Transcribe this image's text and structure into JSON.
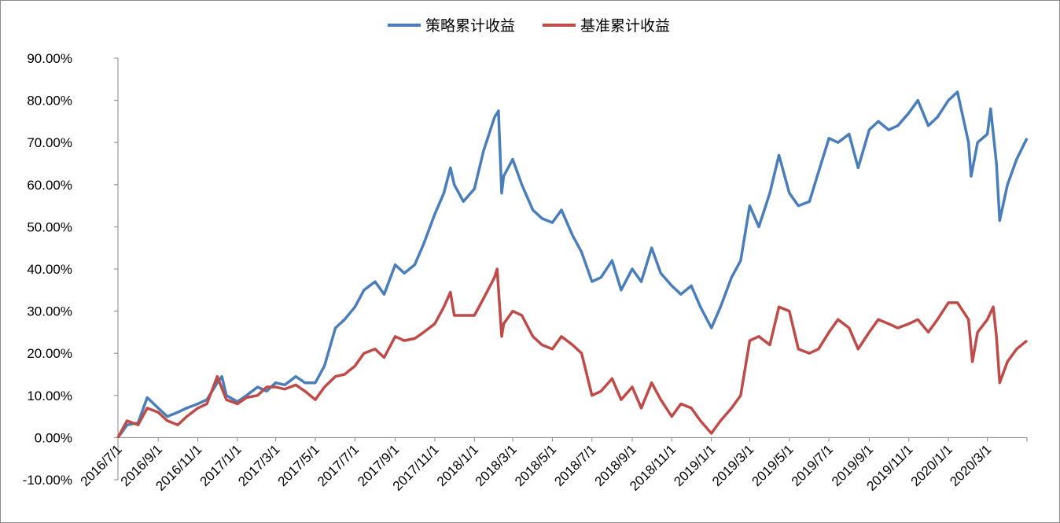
{
  "chart_data": {
    "type": "line",
    "title": "",
    "xlabel": "",
    "ylabel": "",
    "ylim": [
      -10,
      90
    ],
    "yticks": [
      -10,
      0,
      10,
      20,
      30,
      40,
      50,
      60,
      70,
      80,
      90
    ],
    "ytick_labels": [
      "-10.00%",
      "0.00%",
      "10.00%",
      "20.00%",
      "30.00%",
      "40.00%",
      "50.00%",
      "60.00%",
      "70.00%",
      "80.00%",
      "90.00%"
    ],
    "xlim": [
      "2016-07-01",
      "2020-05-01"
    ],
    "xtick_labels": [
      "2016/7/1",
      "2016/9/1",
      "2016/11/1",
      "2017/1/1",
      "2017/3/1",
      "2017/5/1",
      "2017/7/1",
      "2017/9/1",
      "2017/11/1",
      "2018/1/1",
      "2018/3/1",
      "2018/5/1",
      "2018/7/1",
      "2018/9/1",
      "2018/11/1",
      "2019/1/1",
      "2019/3/1",
      "2019/5/1",
      "2019/7/1",
      "2019/9/1",
      "2019/11/1",
      "2020/1/1",
      "2020/3/1"
    ],
    "grid": false,
    "legend_position": "top-center",
    "series": [
      {
        "name": "策略累计收益",
        "color": "#4a7ebb",
        "points": [
          [
            "2016-07-01",
            0
          ],
          [
            "2016-07-15",
            3
          ],
          [
            "2016-08-01",
            3.5
          ],
          [
            "2016-08-15",
            9.5
          ],
          [
            "2016-09-01",
            7
          ],
          [
            "2016-09-15",
            5
          ],
          [
            "2016-10-01",
            6
          ],
          [
            "2016-10-15",
            7
          ],
          [
            "2016-11-01",
            8
          ],
          [
            "2016-11-15",
            9
          ],
          [
            "2016-12-01",
            13
          ],
          [
            "2016-12-08",
            14.5
          ],
          [
            "2016-12-15",
            10
          ],
          [
            "2017-01-01",
            8.5
          ],
          [
            "2017-01-15",
            10
          ],
          [
            "2017-02-01",
            12
          ],
          [
            "2017-02-15",
            11
          ],
          [
            "2017-03-01",
            13
          ],
          [
            "2017-03-15",
            12.5
          ],
          [
            "2017-04-01",
            14.5
          ],
          [
            "2017-04-15",
            13
          ],
          [
            "2017-05-01",
            13
          ],
          [
            "2017-05-15",
            17
          ],
          [
            "2017-06-01",
            26
          ],
          [
            "2017-06-15",
            28
          ],
          [
            "2017-07-01",
            31
          ],
          [
            "2017-07-15",
            35
          ],
          [
            "2017-08-01",
            37
          ],
          [
            "2017-08-15",
            34
          ],
          [
            "2017-09-01",
            41
          ],
          [
            "2017-09-15",
            39
          ],
          [
            "2017-10-01",
            41
          ],
          [
            "2017-10-15",
            46
          ],
          [
            "2017-11-01",
            53
          ],
          [
            "2017-11-15",
            58
          ],
          [
            "2017-11-25",
            64
          ],
          [
            "2017-12-01",
            60
          ],
          [
            "2017-12-15",
            56
          ],
          [
            "2018-01-01",
            59
          ],
          [
            "2018-01-15",
            68
          ],
          [
            "2018-02-01",
            76
          ],
          [
            "2018-02-07",
            77.5
          ],
          [
            "2018-02-12",
            58
          ],
          [
            "2018-02-15",
            62
          ],
          [
            "2018-03-01",
            66
          ],
          [
            "2018-03-15",
            60
          ],
          [
            "2018-04-01",
            54
          ],
          [
            "2018-04-15",
            52
          ],
          [
            "2018-05-01",
            51
          ],
          [
            "2018-05-15",
            54
          ],
          [
            "2018-06-01",
            48
          ],
          [
            "2018-06-15",
            44
          ],
          [
            "2018-07-01",
            37
          ],
          [
            "2018-07-15",
            38
          ],
          [
            "2018-08-01",
            42
          ],
          [
            "2018-08-15",
            35
          ],
          [
            "2018-09-01",
            40
          ],
          [
            "2018-09-15",
            37
          ],
          [
            "2018-10-01",
            45
          ],
          [
            "2018-10-15",
            39
          ],
          [
            "2018-11-01",
            36
          ],
          [
            "2018-11-15",
            34
          ],
          [
            "2018-12-01",
            36
          ],
          [
            "2018-12-15",
            31
          ],
          [
            "2019-01-01",
            26
          ],
          [
            "2019-01-15",
            31
          ],
          [
            "2019-02-01",
            38
          ],
          [
            "2019-02-15",
            42
          ],
          [
            "2019-03-01",
            55
          ],
          [
            "2019-03-15",
            50
          ],
          [
            "2019-04-01",
            58
          ],
          [
            "2019-04-15",
            67
          ],
          [
            "2019-05-01",
            58
          ],
          [
            "2019-05-15",
            55
          ],
          [
            "2019-06-01",
            56
          ],
          [
            "2019-06-15",
            63
          ],
          [
            "2019-07-01",
            71
          ],
          [
            "2019-07-15",
            70
          ],
          [
            "2019-08-01",
            72
          ],
          [
            "2019-08-15",
            64
          ],
          [
            "2019-09-01",
            73
          ],
          [
            "2019-09-15",
            75
          ],
          [
            "2019-10-01",
            73
          ],
          [
            "2019-10-15",
            74
          ],
          [
            "2019-11-01",
            77
          ],
          [
            "2019-11-15",
            80
          ],
          [
            "2019-12-01",
            74
          ],
          [
            "2019-12-15",
            76
          ],
          [
            "2020-01-01",
            80
          ],
          [
            "2020-01-15",
            82
          ],
          [
            "2020-02-01",
            70
          ],
          [
            "2020-02-05",
            62
          ],
          [
            "2020-02-15",
            70
          ],
          [
            "2020-03-01",
            72
          ],
          [
            "2020-03-06",
            78
          ],
          [
            "2020-03-15",
            65
          ],
          [
            "2020-03-20",
            51.5
          ],
          [
            "2020-04-01",
            60
          ],
          [
            "2020-04-15",
            66
          ],
          [
            "2020-05-01",
            71
          ]
        ]
      },
      {
        "name": "基准累计收益",
        "color": "#be4b48",
        "points": [
          [
            "2016-07-01",
            0
          ],
          [
            "2016-07-15",
            4
          ],
          [
            "2016-08-01",
            3
          ],
          [
            "2016-08-15",
            7
          ],
          [
            "2016-09-01",
            6
          ],
          [
            "2016-09-15",
            4
          ],
          [
            "2016-10-01",
            3
          ],
          [
            "2016-10-15",
            5
          ],
          [
            "2016-11-01",
            7
          ],
          [
            "2016-11-15",
            8
          ],
          [
            "2016-12-01",
            14.5
          ],
          [
            "2016-12-15",
            9
          ],
          [
            "2017-01-01",
            8
          ],
          [
            "2017-01-15",
            9.5
          ],
          [
            "2017-02-01",
            10
          ],
          [
            "2017-02-15",
            12
          ],
          [
            "2017-03-01",
            12
          ],
          [
            "2017-03-15",
            11.5
          ],
          [
            "2017-04-01",
            12.5
          ],
          [
            "2017-04-15",
            11
          ],
          [
            "2017-05-01",
            9
          ],
          [
            "2017-05-15",
            12
          ],
          [
            "2017-06-01",
            14.5
          ],
          [
            "2017-06-15",
            15
          ],
          [
            "2017-07-01",
            17
          ],
          [
            "2017-07-15",
            20
          ],
          [
            "2017-08-01",
            21
          ],
          [
            "2017-08-15",
            19
          ],
          [
            "2017-09-01",
            24
          ],
          [
            "2017-09-15",
            23
          ],
          [
            "2017-10-01",
            23.5
          ],
          [
            "2017-10-15",
            25
          ],
          [
            "2017-11-01",
            27
          ],
          [
            "2017-11-15",
            31
          ],
          [
            "2017-11-25",
            34.5
          ],
          [
            "2017-12-01",
            29
          ],
          [
            "2017-12-15",
            29
          ],
          [
            "2018-01-01",
            29
          ],
          [
            "2018-01-15",
            33
          ],
          [
            "2018-02-01",
            38
          ],
          [
            "2018-02-05",
            40
          ],
          [
            "2018-02-12",
            24
          ],
          [
            "2018-02-15",
            27
          ],
          [
            "2018-03-01",
            30
          ],
          [
            "2018-03-15",
            29
          ],
          [
            "2018-04-01",
            24
          ],
          [
            "2018-04-15",
            22
          ],
          [
            "2018-05-01",
            21
          ],
          [
            "2018-05-15",
            24
          ],
          [
            "2018-06-01",
            22
          ],
          [
            "2018-06-15",
            20
          ],
          [
            "2018-07-01",
            10
          ],
          [
            "2018-07-15",
            11
          ],
          [
            "2018-08-01",
            14
          ],
          [
            "2018-08-15",
            9
          ],
          [
            "2018-09-01",
            12
          ],
          [
            "2018-09-15",
            7
          ],
          [
            "2018-10-01",
            13
          ],
          [
            "2018-10-15",
            9
          ],
          [
            "2018-11-01",
            5
          ],
          [
            "2018-11-15",
            8
          ],
          [
            "2018-12-01",
            7
          ],
          [
            "2018-12-15",
            4
          ],
          [
            "2019-01-01",
            1
          ],
          [
            "2019-01-15",
            4
          ],
          [
            "2019-02-01",
            7
          ],
          [
            "2019-02-15",
            10
          ],
          [
            "2019-03-01",
            23
          ],
          [
            "2019-03-15",
            24
          ],
          [
            "2019-04-01",
            22
          ],
          [
            "2019-04-15",
            31
          ],
          [
            "2019-05-01",
            30
          ],
          [
            "2019-05-15",
            21
          ],
          [
            "2019-06-01",
            20
          ],
          [
            "2019-06-15",
            21
          ],
          [
            "2019-07-01",
            25
          ],
          [
            "2019-07-15",
            28
          ],
          [
            "2019-08-01",
            26
          ],
          [
            "2019-08-15",
            21
          ],
          [
            "2019-09-01",
            25
          ],
          [
            "2019-09-15",
            28
          ],
          [
            "2019-10-01",
            27
          ],
          [
            "2019-10-15",
            26
          ],
          [
            "2019-11-01",
            27
          ],
          [
            "2019-11-15",
            28
          ],
          [
            "2019-12-01",
            25
          ],
          [
            "2019-12-15",
            28
          ],
          [
            "2020-01-01",
            32
          ],
          [
            "2020-01-15",
            32
          ],
          [
            "2020-02-01",
            28
          ],
          [
            "2020-02-07",
            18
          ],
          [
            "2020-02-15",
            25
          ],
          [
            "2020-03-01",
            28
          ],
          [
            "2020-03-10",
            31
          ],
          [
            "2020-03-15",
            24
          ],
          [
            "2020-03-20",
            13
          ],
          [
            "2020-04-01",
            18
          ],
          [
            "2020-04-15",
            21
          ],
          [
            "2020-05-01",
            23
          ]
        ]
      }
    ]
  }
}
